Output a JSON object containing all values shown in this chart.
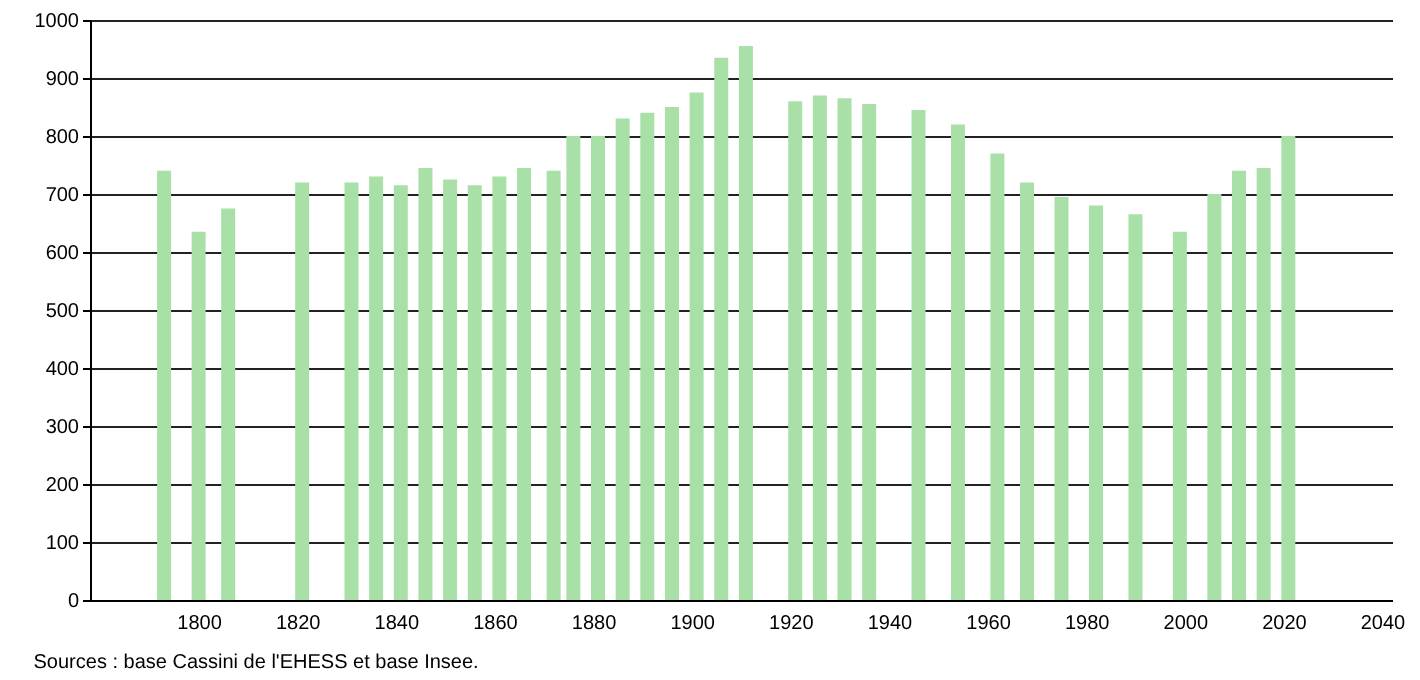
{
  "chart_data": {
    "type": "bar",
    "x": [
      1793,
      1800,
      1806,
      1821,
      1831,
      1836,
      1841,
      1846,
      1851,
      1856,
      1861,
      1866,
      1872,
      1876,
      1881,
      1886,
      1891,
      1896,
      1901,
      1906,
      1911,
      1921,
      1926,
      1931,
      1936,
      1946,
      1954,
      1962,
      1968,
      1975,
      1982,
      1990,
      1999,
      2006,
      2011,
      2016,
      2021
    ],
    "values": [
      740,
      635,
      675,
      720,
      720,
      730,
      715,
      745,
      725,
      715,
      730,
      745,
      740,
      800,
      800,
      830,
      840,
      850,
      875,
      935,
      955,
      860,
      870,
      865,
      855,
      845,
      820,
      770,
      720,
      695,
      680,
      665,
      635,
      700,
      740,
      745,
      800
    ],
    "color": "#a8e0a8",
    "xlim": [
      1780,
      2040
    ],
    "xticks": [
      1800,
      1820,
      1840,
      1860,
      1880,
      1900,
      1920,
      1940,
      1960,
      1980,
      2000,
      2020,
      2040
    ],
    "ylim": [
      0,
      1000
    ],
    "yticks": [
      0,
      100,
      200,
      300,
      400,
      500,
      600,
      700,
      800,
      900,
      1000
    ],
    "grid": "y",
    "annotations": [
      "Sources : base Cassini de l'EHESS et base Insee."
    ]
  }
}
